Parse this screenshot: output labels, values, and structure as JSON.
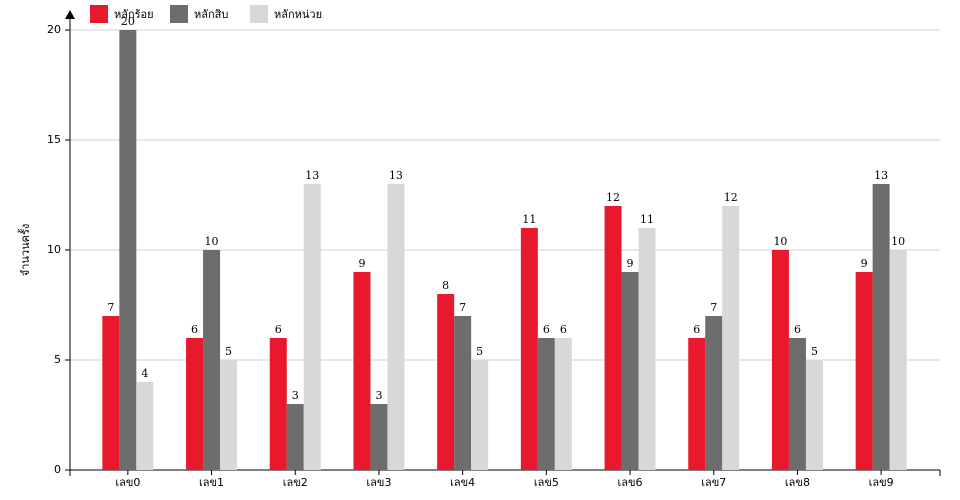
{
  "chart_data": {
    "type": "bar",
    "y_label": "จำนวนครั้ง",
    "categories": [
      "เลข0",
      "เลข1",
      "เลข2",
      "เลข3",
      "เลข4",
      "เลข5",
      "เลข6",
      "เลข7",
      "เลข8",
      "เลข9"
    ],
    "series": [
      {
        "name": "หลักร้อย",
        "color": "#e8192c",
        "values": [
          7,
          6,
          6,
          9,
          8,
          11,
          12,
          6,
          10,
          9
        ]
      },
      {
        "name": "หลักสิบ",
        "color": "#6d6d6d",
        "values": [
          20,
          10,
          3,
          3,
          7,
          6,
          9,
          7,
          6,
          13
        ]
      },
      {
        "name": "หลักหน่วย",
        "color": "#d8d8d8",
        "values": [
          4,
          5,
          13,
          13,
          5,
          6,
          11,
          12,
          5,
          10
        ]
      }
    ],
    "ylim": [
      0,
      20
    ],
    "yticks": [
      0,
      5,
      10,
      15,
      20
    ],
    "grid": true
  }
}
